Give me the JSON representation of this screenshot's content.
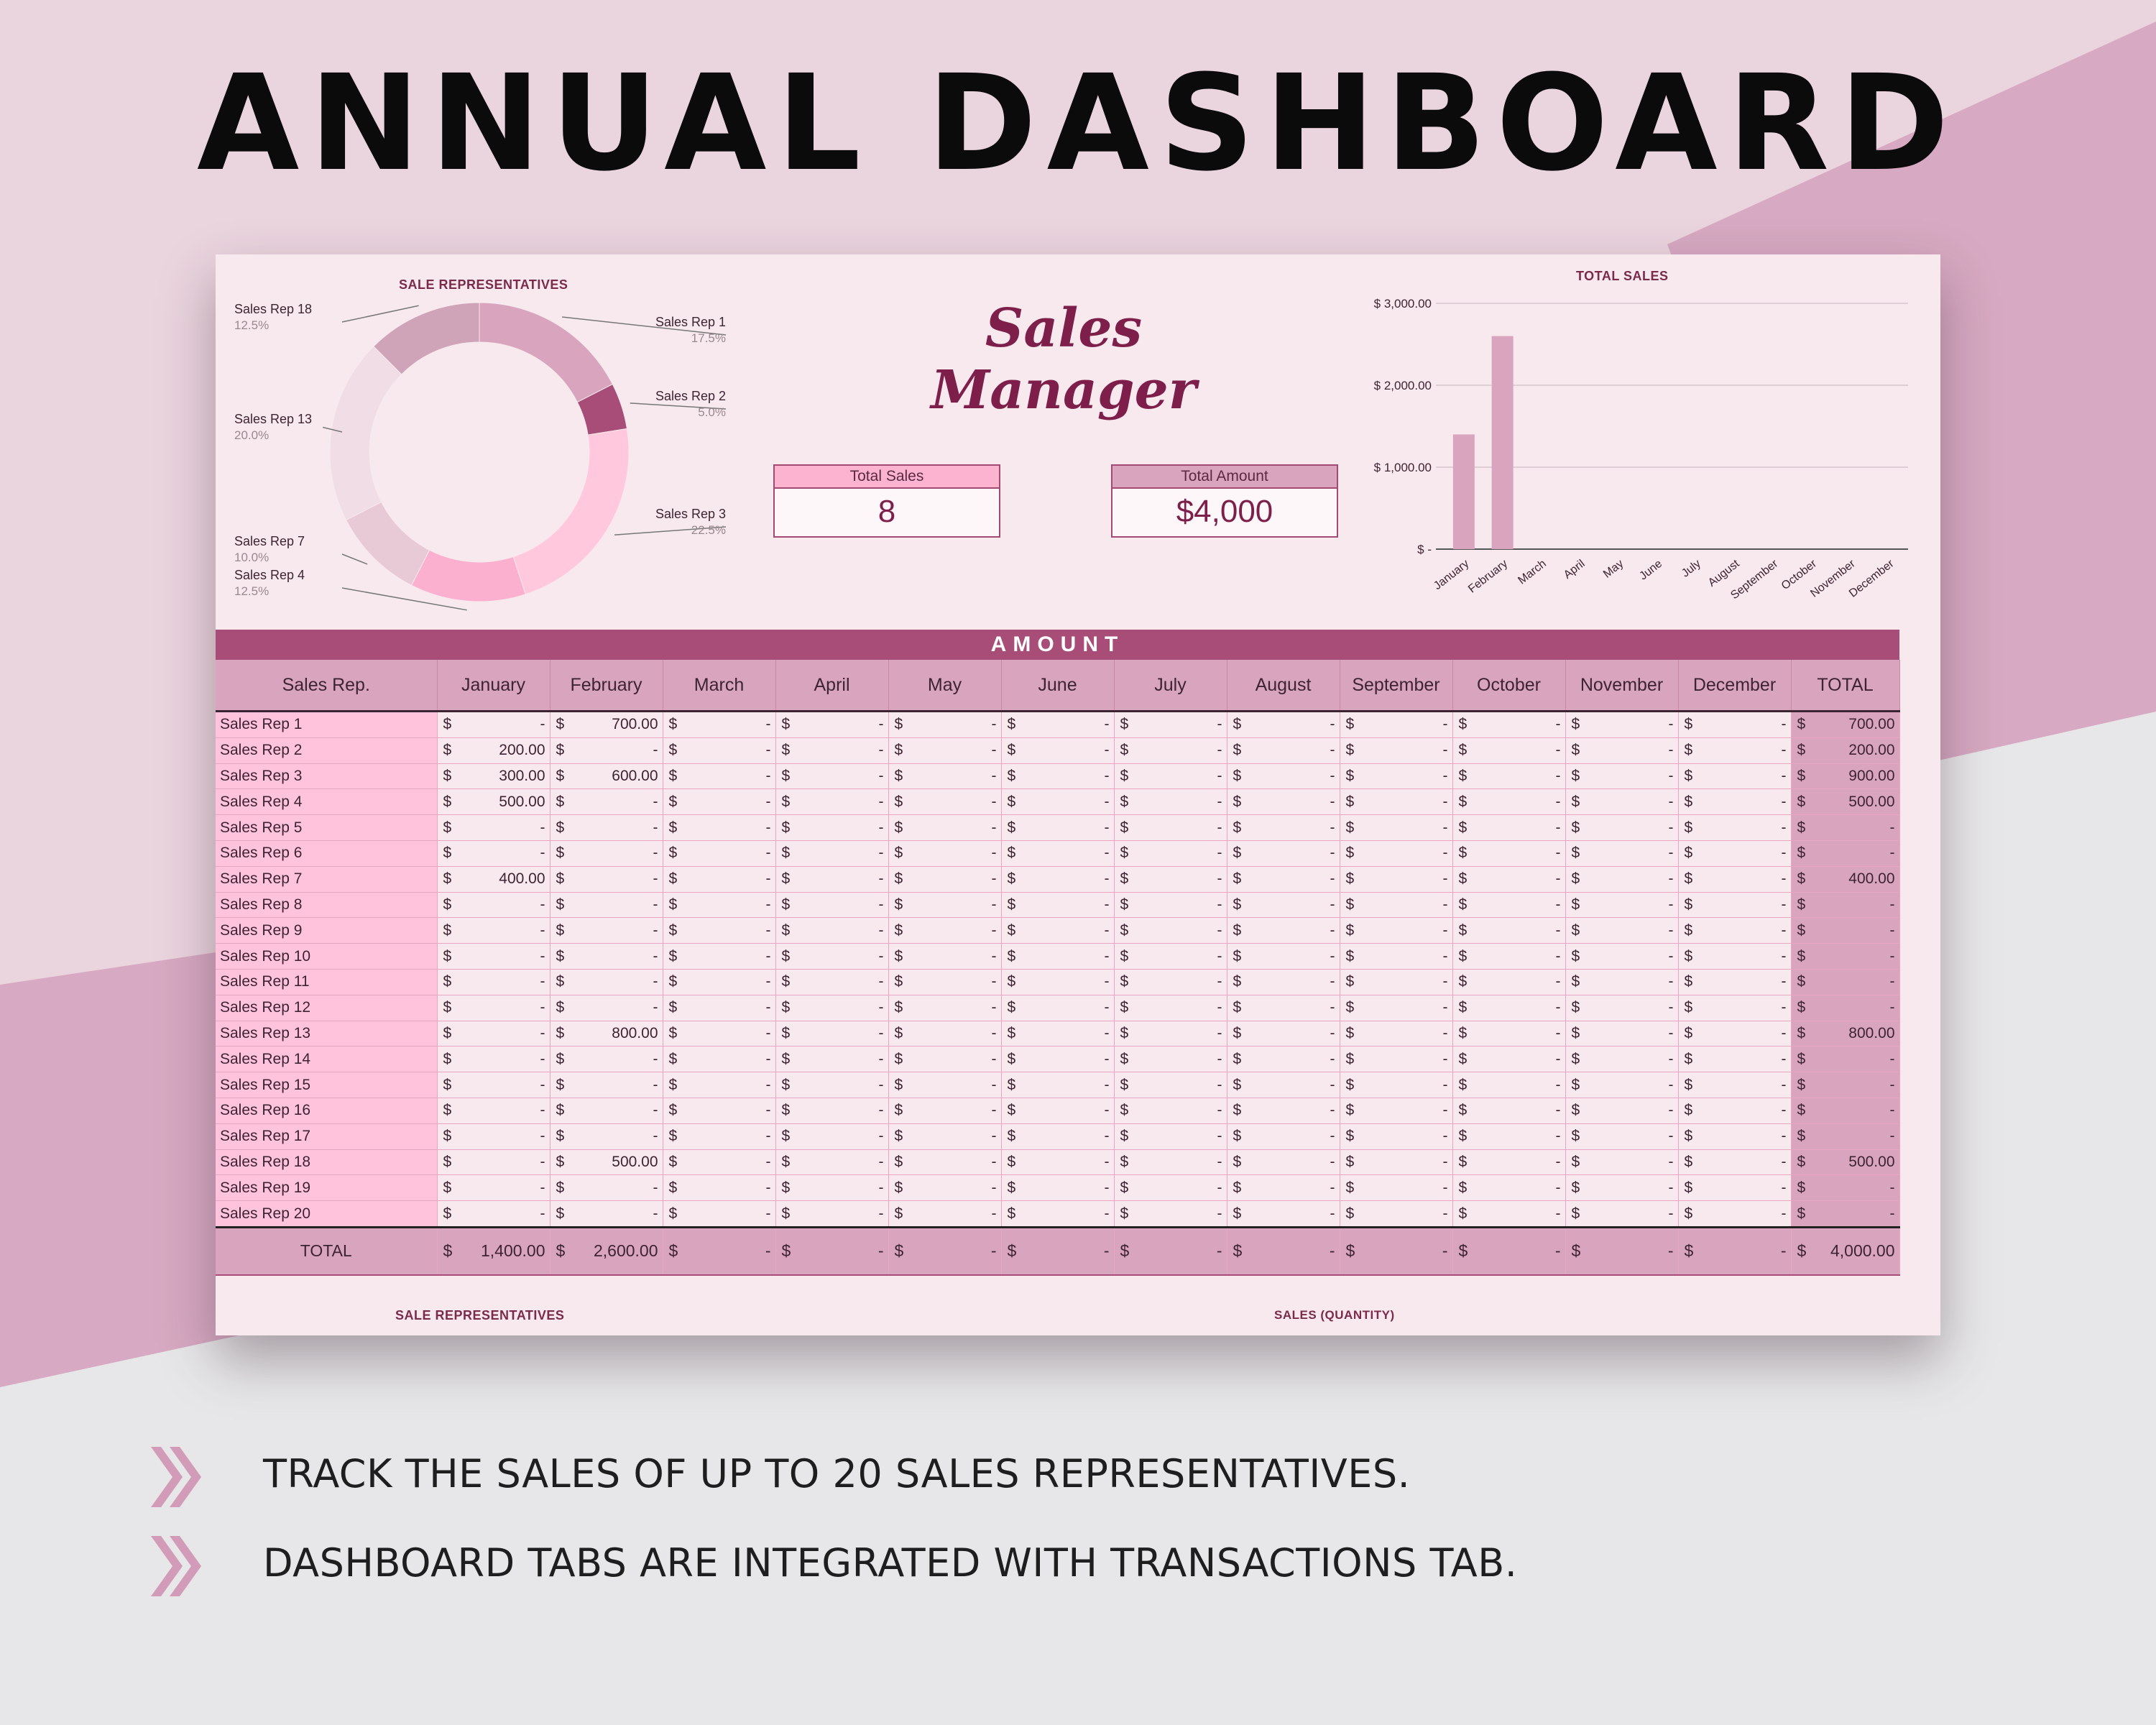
{
  "headline": "ANNUAL DASHBOARD",
  "colors": {
    "accent": "#a74d78",
    "pink_light": "#ffc4dc",
    "mauve": "#d9a5be",
    "brand": "#7d1f4a"
  },
  "brand": "Sales Manager",
  "kpis": [
    {
      "label": "Total Sales",
      "value": "8"
    },
    {
      "label": "Total Amount",
      "value": "$4,000"
    }
  ],
  "donut": {
    "title": "SALE REPRESENTATIVES",
    "chart_data": {
      "type": "pie",
      "slices": [
        {
          "label": "Sales Rep 1",
          "percent": "17.5%",
          "value": 700,
          "color": "#d9a5be"
        },
        {
          "label": "Sales Rep 2",
          "percent": "5.0%",
          "value": 200,
          "color": "#a74d78"
        },
        {
          "label": "Sales Rep 3",
          "percent": "22.5%",
          "value": 900,
          "color": "#ffc8dd"
        },
        {
          "label": "Sales Rep 4",
          "percent": "12.5%",
          "value": 500,
          "color": "#fbb0cf"
        },
        {
          "label": "Sales Rep 7",
          "percent": "10.0%",
          "value": 400,
          "color": "#e8c9d6"
        },
        {
          "label": "Sales Rep 13",
          "percent": "20.0%",
          "value": 800,
          "color": "#f0dde6"
        },
        {
          "label": "Sales Rep 18",
          "percent": "12.5%",
          "value": 500,
          "color": "#cfa3b8"
        }
      ]
    }
  },
  "bar": {
    "title": "TOTAL SALES",
    "chart_data": {
      "type": "bar",
      "categories": [
        "January",
        "February",
        "March",
        "April",
        "May",
        "June",
        "July",
        "August",
        "September",
        "October",
        "November",
        "December"
      ],
      "values": [
        1400,
        2600,
        0,
        0,
        0,
        0,
        0,
        0,
        0,
        0,
        0,
        0
      ],
      "ylim": [
        0,
        3000
      ],
      "y_ticks": [
        "$ -",
        "$ 1,000.00",
        "$ 2,000.00",
        "$ 3,000.00"
      ],
      "grid": true,
      "color": "#d9a5be"
    }
  },
  "table": {
    "band_title": "AMOUNT",
    "rep_header": "Sales Rep.",
    "total_header": "TOTAL",
    "currency": "$",
    "months": [
      "January",
      "February",
      "March",
      "April",
      "May",
      "June",
      "July",
      "August",
      "September",
      "October",
      "November",
      "December"
    ],
    "rows": [
      {
        "name": "Sales Rep 1",
        "values": [
          "-",
          "700.00",
          "-",
          "-",
          "-",
          "-",
          "-",
          "-",
          "-",
          "-",
          "-",
          "-"
        ],
        "total": "700.00"
      },
      {
        "name": "Sales Rep 2",
        "values": [
          "200.00",
          "-",
          "-",
          "-",
          "-",
          "-",
          "-",
          "-",
          "-",
          "-",
          "-",
          "-"
        ],
        "total": "200.00"
      },
      {
        "name": "Sales Rep 3",
        "values": [
          "300.00",
          "600.00",
          "-",
          "-",
          "-",
          "-",
          "-",
          "-",
          "-",
          "-",
          "-",
          "-"
        ],
        "total": "900.00"
      },
      {
        "name": "Sales Rep 4",
        "values": [
          "500.00",
          "-",
          "-",
          "-",
          "-",
          "-",
          "-",
          "-",
          "-",
          "-",
          "-",
          "-"
        ],
        "total": "500.00"
      },
      {
        "name": "Sales Rep 5",
        "values": [
          "-",
          "-",
          "-",
          "-",
          "-",
          "-",
          "-",
          "-",
          "-",
          "-",
          "-",
          "-"
        ],
        "total": "-"
      },
      {
        "name": "Sales Rep 6",
        "values": [
          "-",
          "-",
          "-",
          "-",
          "-",
          "-",
          "-",
          "-",
          "-",
          "-",
          "-",
          "-"
        ],
        "total": "-"
      },
      {
        "name": "Sales Rep 7",
        "values": [
          "400.00",
          "-",
          "-",
          "-",
          "-",
          "-",
          "-",
          "-",
          "-",
          "-",
          "-",
          "-"
        ],
        "total": "400.00"
      },
      {
        "name": "Sales Rep 8",
        "values": [
          "-",
          "-",
          "-",
          "-",
          "-",
          "-",
          "-",
          "-",
          "-",
          "-",
          "-",
          "-"
        ],
        "total": "-"
      },
      {
        "name": "Sales Rep 9",
        "values": [
          "-",
          "-",
          "-",
          "-",
          "-",
          "-",
          "-",
          "-",
          "-",
          "-",
          "-",
          "-"
        ],
        "total": "-"
      },
      {
        "name": "Sales Rep 10",
        "values": [
          "-",
          "-",
          "-",
          "-",
          "-",
          "-",
          "-",
          "-",
          "-",
          "-",
          "-",
          "-"
        ],
        "total": "-"
      },
      {
        "name": "Sales Rep 11",
        "values": [
          "-",
          "-",
          "-",
          "-",
          "-",
          "-",
          "-",
          "-",
          "-",
          "-",
          "-",
          "-"
        ],
        "total": "-"
      },
      {
        "name": "Sales Rep 12",
        "values": [
          "-",
          "-",
          "-",
          "-",
          "-",
          "-",
          "-",
          "-",
          "-",
          "-",
          "-",
          "-"
        ],
        "total": "-"
      },
      {
        "name": "Sales Rep 13",
        "values": [
          "-",
          "800.00",
          "-",
          "-",
          "-",
          "-",
          "-",
          "-",
          "-",
          "-",
          "-",
          "-"
        ],
        "total": "800.00"
      },
      {
        "name": "Sales Rep 14",
        "values": [
          "-",
          "-",
          "-",
          "-",
          "-",
          "-",
          "-",
          "-",
          "-",
          "-",
          "-",
          "-"
        ],
        "total": "-"
      },
      {
        "name": "Sales Rep 15",
        "values": [
          "-",
          "-",
          "-",
          "-",
          "-",
          "-",
          "-",
          "-",
          "-",
          "-",
          "-",
          "-"
        ],
        "total": "-"
      },
      {
        "name": "Sales Rep 16",
        "values": [
          "-",
          "-",
          "-",
          "-",
          "-",
          "-",
          "-",
          "-",
          "-",
          "-",
          "-",
          "-"
        ],
        "total": "-"
      },
      {
        "name": "Sales Rep 17",
        "values": [
          "-",
          "-",
          "-",
          "-",
          "-",
          "-",
          "-",
          "-",
          "-",
          "-",
          "-",
          "-"
        ],
        "total": "-"
      },
      {
        "name": "Sales Rep 18",
        "values": [
          "-",
          "500.00",
          "-",
          "-",
          "-",
          "-",
          "-",
          "-",
          "-",
          "-",
          "-",
          "-"
        ],
        "total": "500.00"
      },
      {
        "name": "Sales Rep 19",
        "values": [
          "-",
          "-",
          "-",
          "-",
          "-",
          "-",
          "-",
          "-",
          "-",
          "-",
          "-",
          "-"
        ],
        "total": "-"
      },
      {
        "name": "Sales Rep 20",
        "values": [
          "-",
          "-",
          "-",
          "-",
          "-",
          "-",
          "-",
          "-",
          "-",
          "-",
          "-",
          "-"
        ],
        "total": "-"
      }
    ],
    "total_row": {
      "name": "TOTAL",
      "values": [
        "1,400.00",
        "2,600.00",
        "-",
        "-",
        "-",
        "-",
        "-",
        "-",
        "-",
        "-",
        "-",
        "-"
      ],
      "total": "4,000.00"
    }
  },
  "bottom_titles": {
    "left": "SALE REPRESENTATIVES",
    "right": "SALES (QUANTITY)"
  },
  "features": [
    {
      "icon": "double-chevron-icon",
      "text": "TRACK THE SALES OF UP TO 20 SALES REPRESENTATIVES."
    },
    {
      "icon": "double-chevron-icon",
      "text": "DASHBOARD TABS ARE INTEGRATED WITH TRANSACTIONS TAB."
    }
  ]
}
